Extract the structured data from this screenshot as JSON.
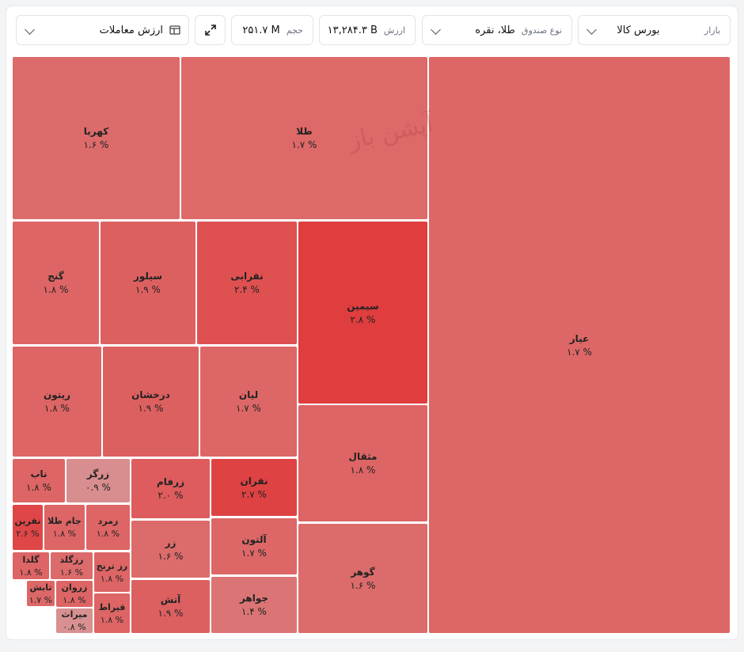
{
  "header": {
    "market": {
      "label": "بازار",
      "value": "بورس کالا"
    },
    "fund_type": {
      "label": "نوع صندوق",
      "value": "طلا، نقره"
    },
    "trade_value": {
      "label": "ارزش",
      "value": "۱۳,۲۸۴.۳ B"
    },
    "volume": {
      "label": "حجم",
      "value": "۲۵۱.۷ M"
    },
    "metric": {
      "value": "ارزش معاملات"
    }
  },
  "watermark": "آپشن باز",
  "tiles": [
    {
      "name": "عیار",
      "label": "۱.۷ %",
      "color": "#dd6767"
    },
    {
      "name": "طلا",
      "label": "۱.۷ %",
      "color": "#dd6969"
    },
    {
      "name": "کهربا",
      "label": "۱.۶ %",
      "color": "#dc6b6b"
    },
    {
      "name": "سیمین",
      "label": "۲.۸ %",
      "color": "#df3d3e"
    },
    {
      "name": "نقرابی",
      "label": "۲.۴ %",
      "color": "#df5051"
    },
    {
      "name": "سیلور",
      "label": "۱.۹ %",
      "color": "#dd6061"
    },
    {
      "name": "گنج",
      "label": "۱.۸ %",
      "color": "#dd6565"
    },
    {
      "name": "لیان",
      "label": "۱.۷ %",
      "color": "#dd6767"
    },
    {
      "name": "درخشان",
      "label": "۱.۹ %",
      "color": "#dd6061"
    },
    {
      "name": "ریتون",
      "label": "۱.۸ %",
      "color": "#dd6565"
    },
    {
      "name": "مثقال",
      "label": "۱.۸ %",
      "color": "#dd6565"
    },
    {
      "name": "گوهر",
      "label": "۱.۶ %",
      "color": "#dc6b6b"
    },
    {
      "name": "نقران",
      "label": "۲.۷ %",
      "color": "#df4243"
    },
    {
      "name": "آلتون",
      "label": "۱.۷ %",
      "color": "#dd6767"
    },
    {
      "name": "جواهر",
      "label": "۱.۴ %",
      "color": "#db7475"
    },
    {
      "name": "زرفام",
      "label": "۲.۰ %",
      "color": "#de5c5d"
    },
    {
      "name": "زر",
      "label": "۱.۶ %",
      "color": "#dc6b6b"
    },
    {
      "name": "آتش",
      "label": "۱.۹ %",
      "color": "#dd6061"
    },
    {
      "name": "ناب",
      "label": "۱.۸ %",
      "color": "#dd6565"
    },
    {
      "name": "زرگر",
      "label": "۰.۹ %",
      "color": "#d88d8e"
    },
    {
      "name": "نقرین",
      "label": "۲.۶ %",
      "color": "#df4647"
    },
    {
      "name": "جام طلا",
      "label": "۱.۸ %",
      "color": "#dd6565"
    },
    {
      "name": "زمرد",
      "label": "۱.۸ %",
      "color": "#dd6565"
    },
    {
      "name": "گلدا",
      "label": "۱.۸ %",
      "color": "#dd6565"
    },
    {
      "name": "رزگلد",
      "label": "۱.۶ %",
      "color": "#dc6b6b"
    },
    {
      "name": "رز ترنج",
      "label": "۱.۸ %",
      "color": "#dd6565"
    },
    {
      "name": "زروان",
      "label": "۱.۸ %",
      "color": "#dd6565"
    },
    {
      "name": "قیراط",
      "label": "۱.۸ %",
      "color": "#dd6565"
    },
    {
      "name": "میراث",
      "label": "۰.۸ %",
      "color": "#d89091"
    },
    {
      "name": "تابش",
      "label": "۱.۷ %",
      "color": "#dd6767"
    }
  ]
}
